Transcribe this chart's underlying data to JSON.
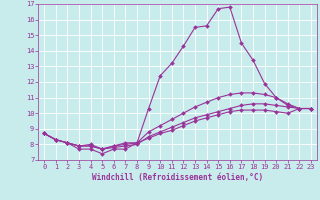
{
  "xlabel": "Windchill (Refroidissement éolien,°C)",
  "ylabel": "",
  "bg_color": "#c8ecec",
  "line_color": "#993399",
  "grid_color": "#ffffff",
  "xlim": [
    -0.5,
    23.5
  ],
  "ylim": [
    7,
    17
  ],
  "yticks": [
    7,
    8,
    9,
    10,
    11,
    12,
    13,
    14,
    15,
    16,
    17
  ],
  "xticks": [
    0,
    1,
    2,
    3,
    4,
    5,
    6,
    7,
    8,
    9,
    10,
    11,
    12,
    13,
    14,
    15,
    16,
    17,
    18,
    19,
    20,
    21,
    22,
    23
  ],
  "curves": [
    {
      "x": [
        0,
        1,
        2,
        3,
        4,
        5,
        6,
        7,
        8,
        9,
        10,
        11,
        12,
        13,
        14,
        15,
        16,
        17,
        18,
        19,
        20,
        21,
        22,
        23
      ],
      "y": [
        8.7,
        8.3,
        8.1,
        7.7,
        7.7,
        7.4,
        7.7,
        7.7,
        8.1,
        10.3,
        12.4,
        13.2,
        14.3,
        15.5,
        15.6,
        16.7,
        16.8,
        14.5,
        13.4,
        11.9,
        11.0,
        10.5,
        10.3,
        10.3
      ]
    },
    {
      "x": [
        0,
        1,
        2,
        3,
        4,
        5,
        6,
        7,
        8,
        9,
        10,
        11,
        12,
        13,
        14,
        15,
        16,
        17,
        18,
        19,
        20,
        21,
        22,
        23
      ],
      "y": [
        8.7,
        8.3,
        8.1,
        7.9,
        7.9,
        7.7,
        7.9,
        8.0,
        8.1,
        8.8,
        9.2,
        9.6,
        10.0,
        10.4,
        10.7,
        11.0,
        11.2,
        11.3,
        11.3,
        11.2,
        11.0,
        10.6,
        10.3,
        10.3
      ]
    },
    {
      "x": [
        0,
        1,
        2,
        3,
        4,
        5,
        6,
        7,
        8,
        9,
        10,
        11,
        12,
        13,
        14,
        15,
        16,
        17,
        18,
        19,
        20,
        21,
        22,
        23
      ],
      "y": [
        8.7,
        8.3,
        8.1,
        7.9,
        7.9,
        7.7,
        7.8,
        7.9,
        8.0,
        8.5,
        8.8,
        9.1,
        9.4,
        9.7,
        9.9,
        10.1,
        10.3,
        10.5,
        10.6,
        10.6,
        10.5,
        10.4,
        10.3,
        10.3
      ]
    },
    {
      "x": [
        0,
        1,
        2,
        3,
        4,
        5,
        6,
        7,
        8,
        9,
        10,
        11,
        12,
        13,
        14,
        15,
        16,
        17,
        18,
        19,
        20,
        21,
        22,
        23
      ],
      "y": [
        8.7,
        8.3,
        8.1,
        7.9,
        8.0,
        7.7,
        7.9,
        8.1,
        8.1,
        8.4,
        8.7,
        8.9,
        9.2,
        9.5,
        9.7,
        9.9,
        10.1,
        10.2,
        10.2,
        10.2,
        10.1,
        10.0,
        10.3,
        10.3
      ]
    }
  ],
  "marker": "D",
  "markersize": 2,
  "linewidth": 0.8,
  "tick_fontsize": 5,
  "xlabel_fontsize": 5.5
}
